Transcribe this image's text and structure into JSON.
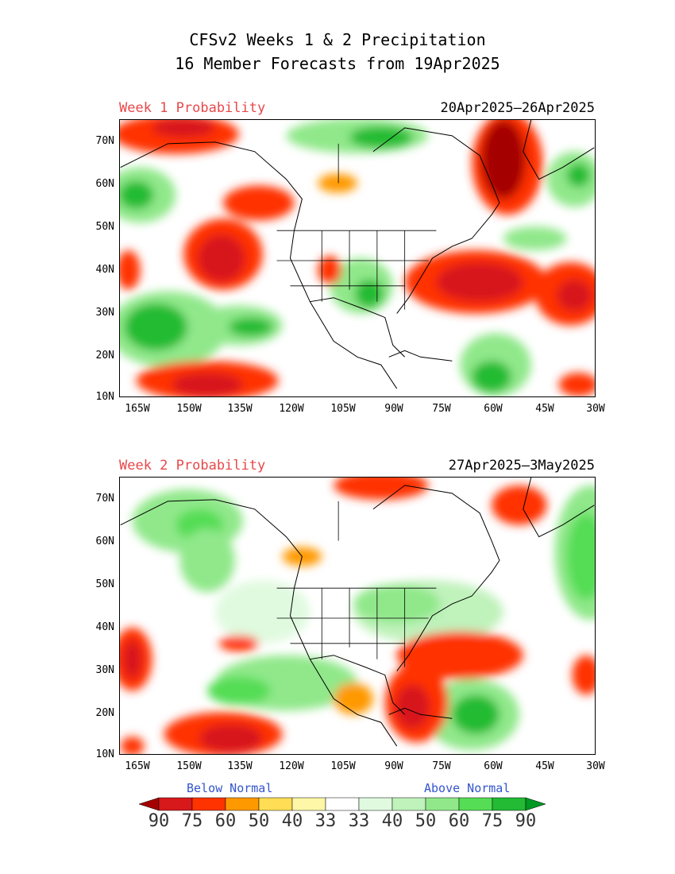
{
  "title": {
    "line1": "CFSv2 Weeks 1 & 2 Precipitation",
    "line2": "16 Member Forecasts from 19Apr2025"
  },
  "panels": [
    {
      "week_label": "Week 1 Probability",
      "date_range": "20Apr2025—26Apr2025"
    },
    {
      "week_label": "Week 2 Probability",
      "date_range": "27Apr2025—3May2025"
    }
  ],
  "axes": {
    "lat_labels": [
      "70N",
      "60N",
      "50N",
      "40N",
      "30N",
      "20N",
      "10N"
    ],
    "lon_labels": [
      "165W",
      "150W",
      "135W",
      "120W",
      "105W",
      "90W",
      "75W",
      "60W",
      "45W",
      "30W"
    ]
  },
  "legend": {
    "below_label": "Below Normal",
    "above_label": "Above Normal",
    "values": [
      "90",
      "75",
      "60",
      "50",
      "40",
      "33",
      "33",
      "40",
      "50",
      "60",
      "75",
      "90"
    ],
    "colors": [
      "#a50000",
      "#d7191c",
      "#ff3300",
      "#ff9900",
      "#ffdd55",
      "#fff7a8",
      "#ffffff",
      "#e0fadf",
      "#c0f2bb",
      "#90e88a",
      "#55dd55",
      "#22bb33",
      "#009922"
    ]
  }
}
